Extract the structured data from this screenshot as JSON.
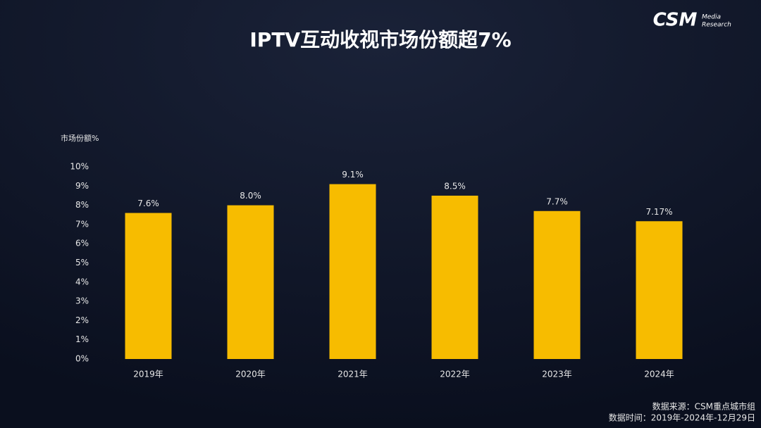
{
  "logo": {
    "brand": "CSM",
    "line1": "Media",
    "line2": "Research"
  },
  "chart_data": {
    "type": "bar",
    "title": "IPTV互动收视市场份额超7%",
    "y_label": "市场份额%",
    "categories": [
      "2019年",
      "2020年",
      "2021年",
      "2022年",
      "2023年",
      "2024年"
    ],
    "values": [
      7.6,
      8.0,
      9.1,
      8.5,
      7.7,
      7.17
    ],
    "value_labels": [
      "7.6%",
      "8.0%",
      "9.1%",
      "8.5%",
      "7.7%",
      "7.17%"
    ],
    "color": "#f7bc00",
    "ylim": [
      0,
      10
    ],
    "yticks": [
      {
        "value": 0,
        "label": "0%"
      },
      {
        "value": 1,
        "label": "1%"
      },
      {
        "value": 2,
        "label": "2%"
      },
      {
        "value": 3,
        "label": "3%"
      },
      {
        "value": 4,
        "label": "4%"
      },
      {
        "value": 5,
        "label": "5%"
      },
      {
        "value": 6,
        "label": "6%"
      },
      {
        "value": 7,
        "label": "7%"
      },
      {
        "value": 8,
        "label": "8%"
      },
      {
        "value": 9,
        "label": "9%"
      },
      {
        "value": 10,
        "label": "10%"
      }
    ],
    "grid": false
  },
  "footer": {
    "source": "数据来源：CSM重点城市组",
    "period": "数据时间：2019年-2024年-12月29日"
  }
}
